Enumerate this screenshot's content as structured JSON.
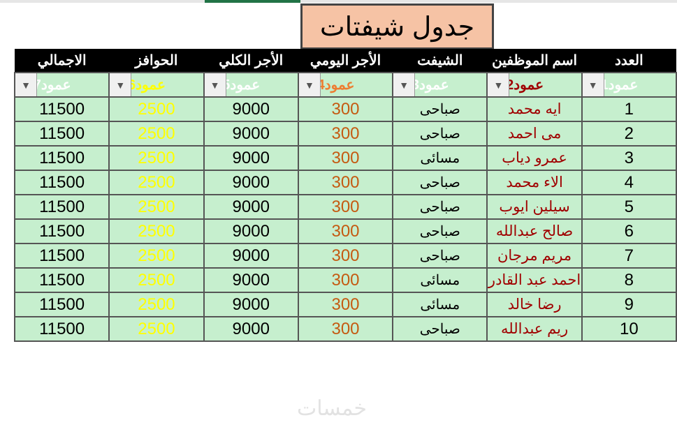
{
  "title": "جدول شيفتات",
  "headers": [
    "العدد",
    "اسم الموظفين",
    "الشيفت",
    "الأجر اليومي",
    "الأجر الكلي",
    "الحوافز",
    "الاجمالي"
  ],
  "filters": [
    "عمود1",
    "عمود2",
    "عمود3",
    "عمود4",
    "عمود5",
    "عمود6",
    "عمود7"
  ],
  "filter_colors": [
    "#ffffff",
    "#a00000",
    "#ffffff",
    "#ed7d31",
    "#ffffff",
    "#ffff00",
    "#ffffff"
  ],
  "dropdown_icon": "▼",
  "rows": [
    [
      "1",
      "ايه محمد",
      "صباحى",
      "300",
      "9000",
      "2500",
      "11500"
    ],
    [
      "2",
      "مى احمد",
      "صباحى",
      "300",
      "9000",
      "2500",
      "11500"
    ],
    [
      "3",
      "عمرو دياب",
      "مسائى",
      "300",
      "9000",
      "2500",
      "11500"
    ],
    [
      "4",
      "الاء محمد",
      "صباحى",
      "300",
      "9000",
      "2500",
      "11500"
    ],
    [
      "5",
      "سيلين ايوب",
      "صباحى",
      "300",
      "9000",
      "2500",
      "11500"
    ],
    [
      "6",
      "صالح عبدالله",
      "صباحى",
      "300",
      "9000",
      "2500",
      "11500"
    ],
    [
      "7",
      "مريم مرجان",
      "صباحى",
      "300",
      "9000",
      "2500",
      "11500"
    ],
    [
      "8",
      "احمد عبد القادر",
      "مسائى",
      "300",
      "9000",
      "2500",
      "11500"
    ],
    [
      "9",
      "رضا خالد",
      "مسائى",
      "300",
      "9000",
      "2500",
      "11500"
    ],
    [
      "10",
      "ريم عبدالله",
      "صباحى",
      "300",
      "9000",
      "2500",
      "11500"
    ]
  ],
  "watermark": "خمسات"
}
